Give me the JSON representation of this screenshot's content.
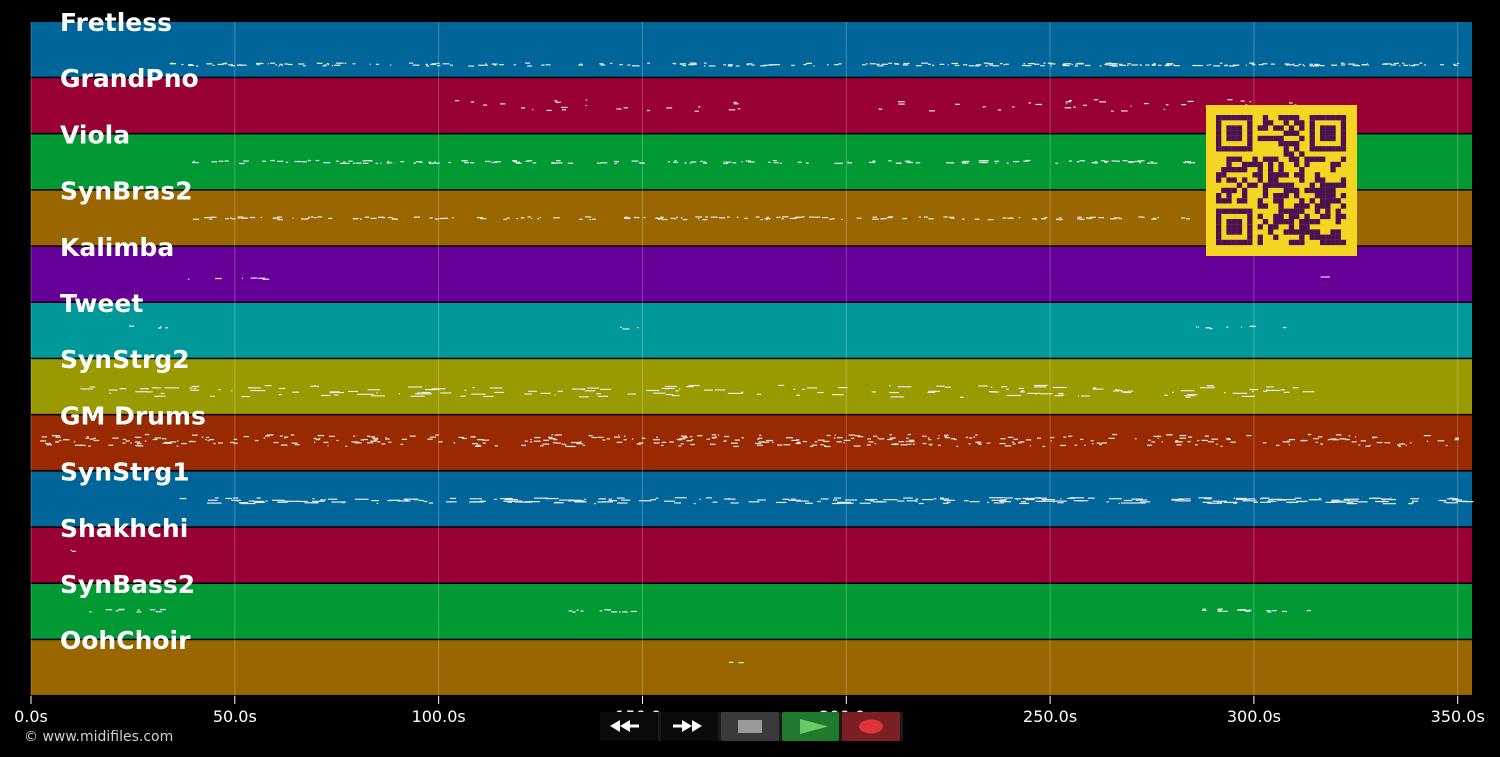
{
  "colors": {
    "background": "#000000",
    "grid": "rgba(255,255,255,0.25)",
    "note": "#e8e8e8",
    "qr_fg": "#4a1250",
    "qr_bg": "#f4d521"
  },
  "tracks": [
    {
      "name": "Fretless",
      "color": "#006699"
    },
    {
      "name": "GrandPno",
      "color": "#990033"
    },
    {
      "name": "Viola",
      "color": "#009933"
    },
    {
      "name": "SynBras2",
      "color": "#996600"
    },
    {
      "name": "Kalimba",
      "color": "#660099"
    },
    {
      "name": "Tweet",
      "color": "#009999"
    },
    {
      "name": "SynStrg2",
      "color": "#999900"
    },
    {
      "name": "GM Drums",
      "color": "#992900"
    },
    {
      "name": "SynStrg1",
      "color": "#006699"
    },
    {
      "name": "Shakhchi",
      "color": "#990033"
    },
    {
      "name": "SynBass2",
      "color": "#009933"
    },
    {
      "name": "OohChoir",
      "color": "#996600"
    }
  ],
  "timeline": {
    "ticks": [
      "0.0s",
      "50.0s",
      "100.0s",
      "150.0s",
      "200.0s",
      "250.0s",
      "300.0s",
      "350.0s"
    ],
    "tick_values": [
      0,
      50,
      100,
      150,
      200,
      250,
      300,
      350
    ],
    "max_seconds": 353.5
  },
  "footer": {
    "copyright": "© www.midifiles.com"
  },
  "controls": {
    "rewind_icon": "rewind-icon",
    "fast_forward_icon": "fast-forward-icon",
    "stop_icon": "stop-icon",
    "play_icon": "play-icon",
    "record_icon": "record-icon",
    "colors": {
      "rewind_bg": "#0a0a0a",
      "ff_bg": "#0a0a0a",
      "stop_bg": "#3a3a3a",
      "stop_fg": "#9a9a9a",
      "play_bg": "#1f7a2e",
      "play_fg": "#66cc66",
      "record_bg": "#7a1f22",
      "record_fg": "#e0343a"
    }
  }
}
